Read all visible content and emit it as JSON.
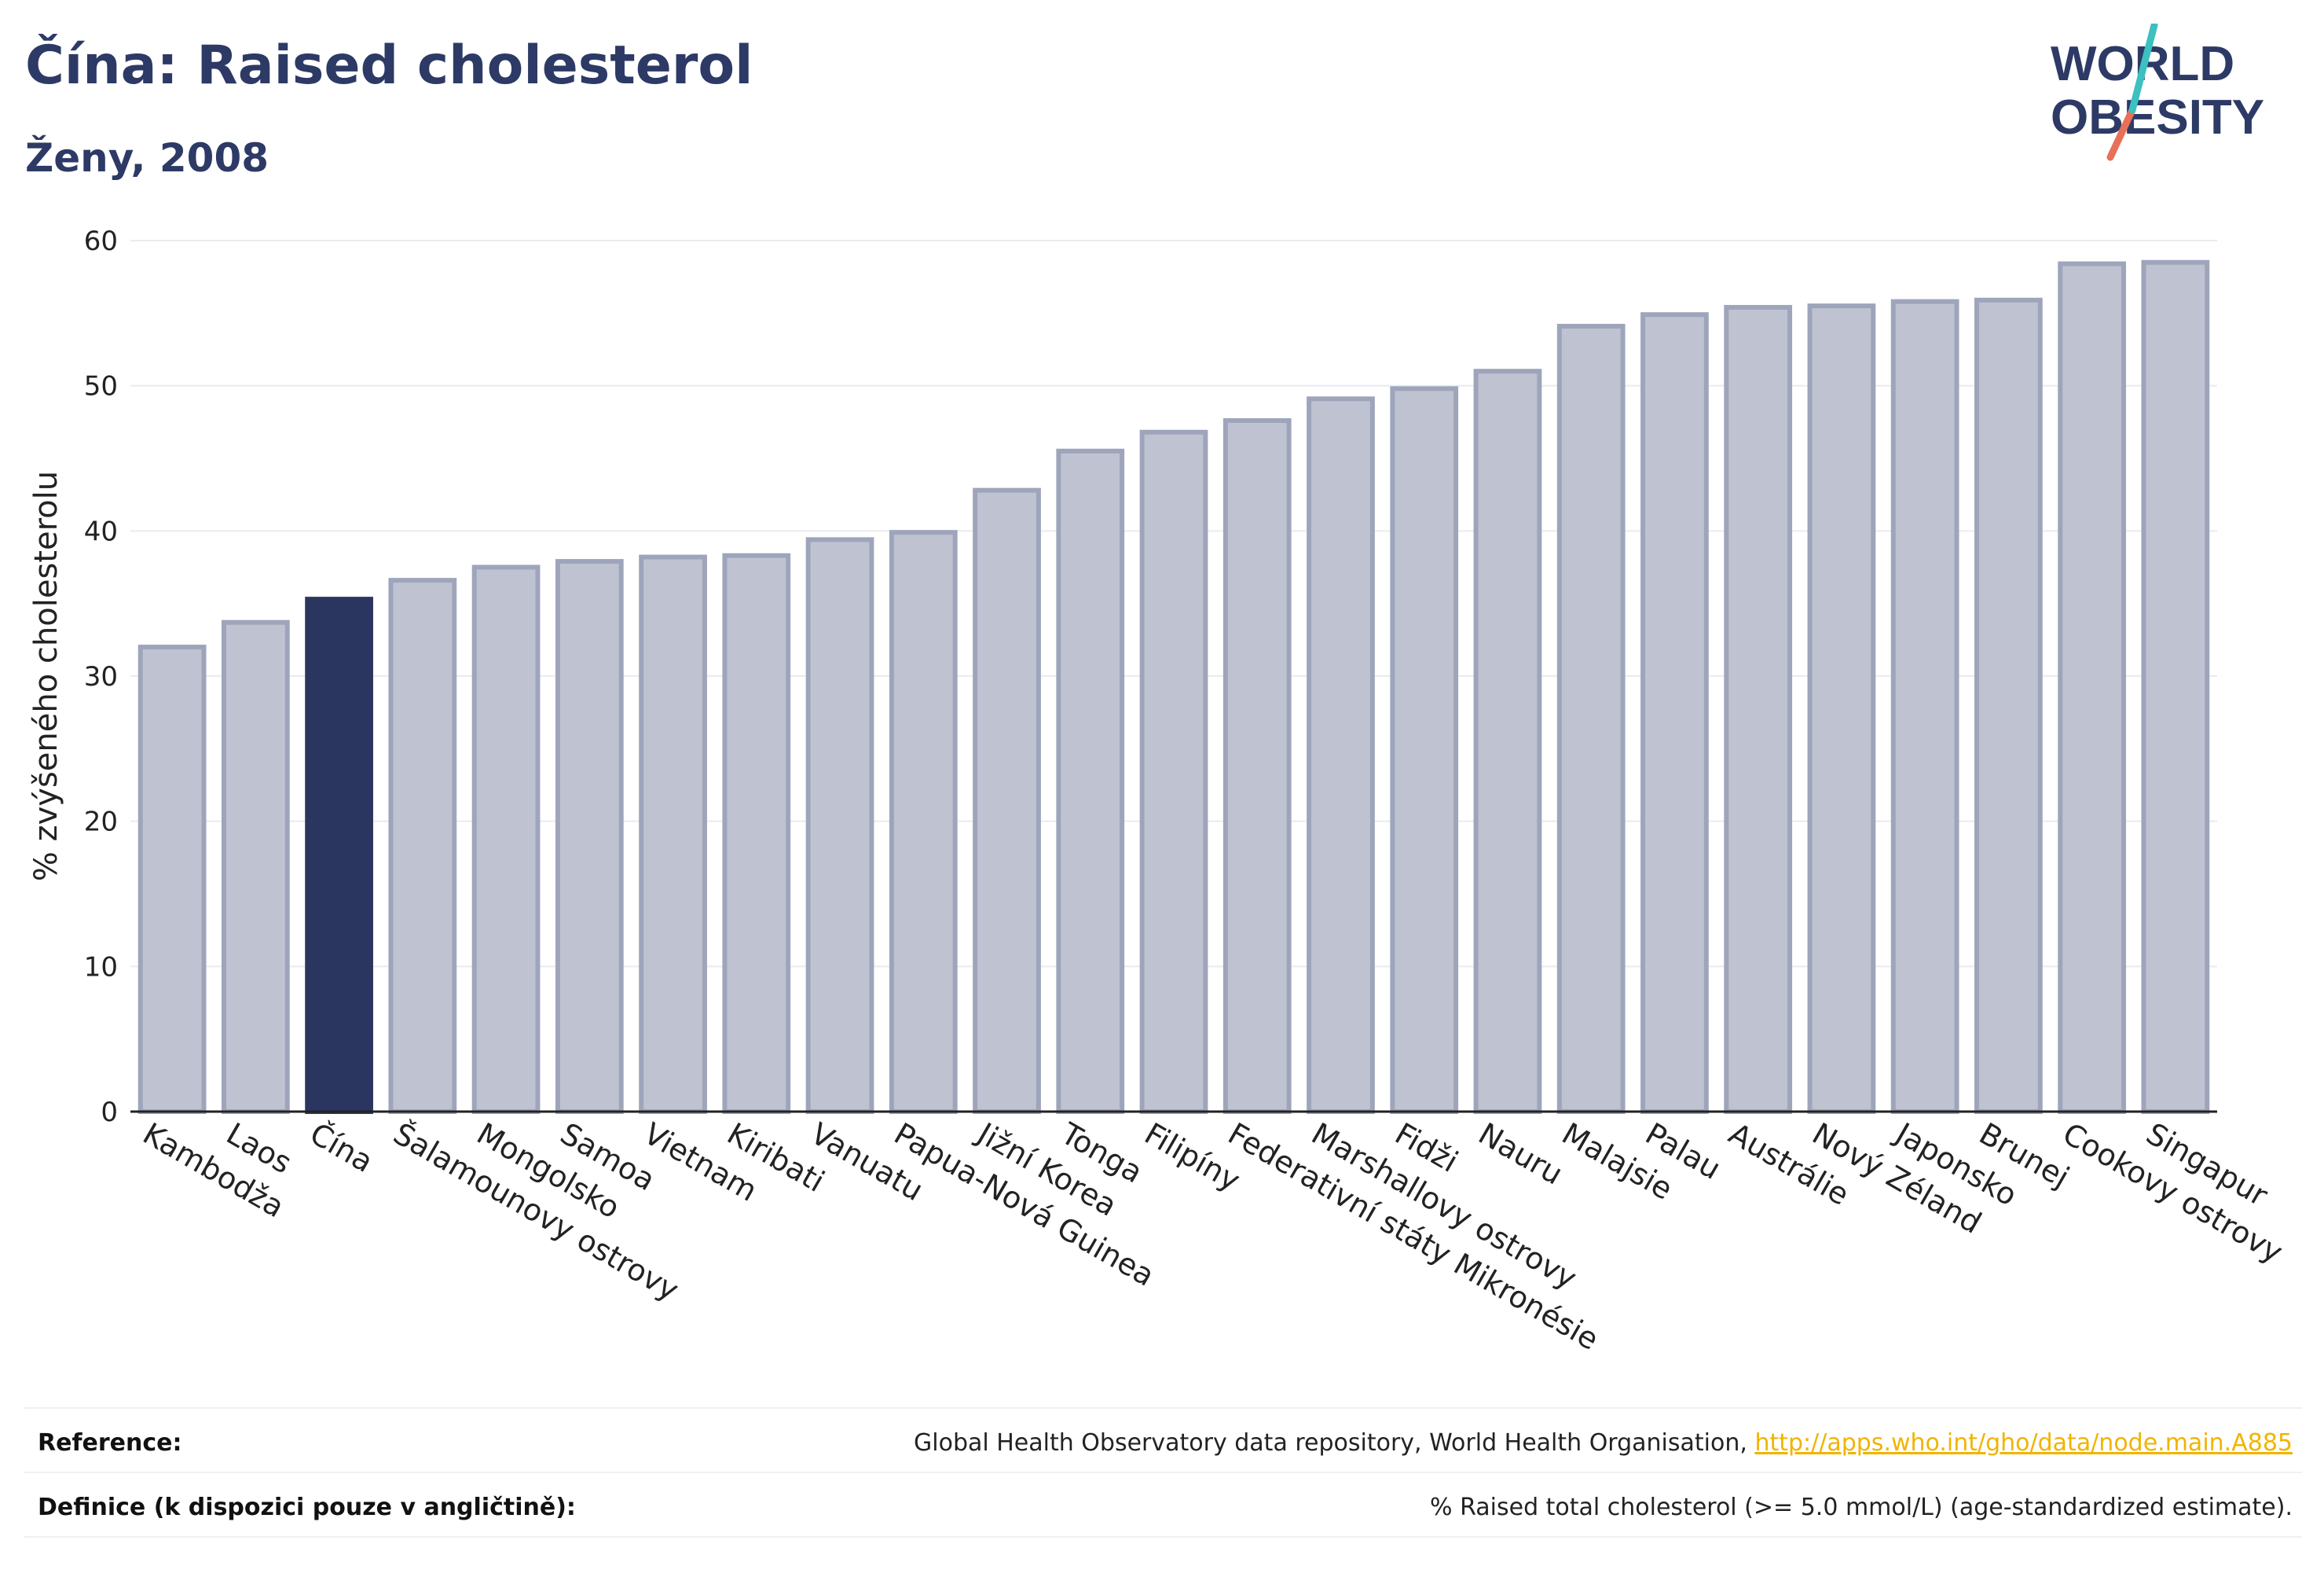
{
  "header": {
    "title": "Čína: Raised cholesterol",
    "subtitle": "Ženy, 2008"
  },
  "logo": {
    "line1": "WORLD",
    "line2": "OBESITY",
    "colors": {
      "text": "#2d3a66",
      "slash_teal": "#3cc0c0",
      "slash_coral": "#e8705a"
    }
  },
  "colors": {
    "bar": "#bfc3d1",
    "bar_border": "#9ea5bb",
    "highlight": "#2b3660",
    "grid": "#e9ebf0",
    "axis": "#222222"
  },
  "chart_data": {
    "type": "bar",
    "ylabel": "% zvýšeného cholesterolu",
    "ylim": [
      0,
      60
    ],
    "yticks": [
      0,
      10,
      20,
      30,
      40,
      50,
      60
    ],
    "grid": true,
    "highlight": "Čína",
    "categories": [
      "Kambodža",
      "Laos",
      "Čína",
      "Šalamounovy ostrovy",
      "Mongolsko",
      "Samoa",
      "Vietnam",
      "Kiribati",
      "Vanuatu",
      "Papua-Nová Guinea",
      "Jižní Korea",
      "Tonga",
      "Filipíny",
      "Federativní státy Mikronésie",
      "Marshallovy ostrovy",
      "Fidži",
      "Nauru",
      "Malajsie",
      "Palau",
      "Austrálie",
      "Nový Zéland",
      "Japonsko",
      "Brunej",
      "Cookovy ostrovy",
      "Singapur"
    ],
    "values": [
      32.0,
      33.7,
      35.3,
      36.6,
      37.5,
      37.9,
      38.2,
      38.3,
      39.4,
      39.9,
      42.8,
      45.5,
      46.8,
      47.6,
      49.1,
      49.8,
      51.0,
      54.1,
      54.9,
      55.4,
      55.5,
      55.8,
      55.9,
      58.4,
      58.5
    ]
  },
  "footer": {
    "reference_label": "Reference:",
    "reference_text": "Global Health Observatory data repository, World Health Organisation, ",
    "reference_link": "http://apps.who.int/gho/data/node.main.A885",
    "definition_label": "Definice (k dispozici pouze v angličtině):",
    "definition_text": "% Raised total cholesterol (>= 5.0 mmol/L) (age-standardized estimate)."
  }
}
